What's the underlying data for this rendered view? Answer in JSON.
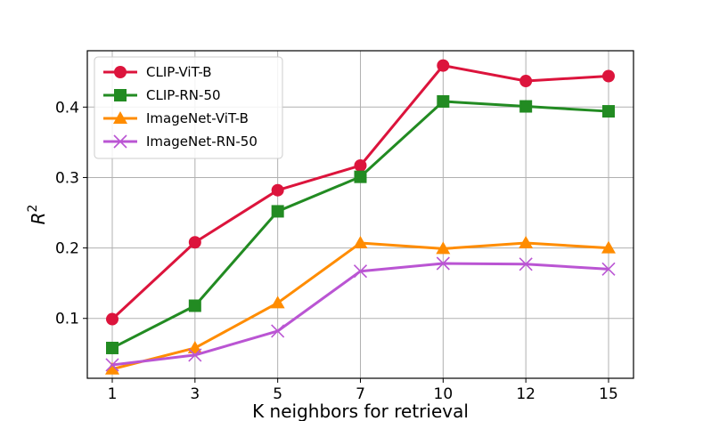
{
  "chart_data": {
    "type": "line",
    "xlabel": "K neighbors for retrieval",
    "ylabel_base": "R",
    "ylabel_sup": "2",
    "categories": [
      "1",
      "3",
      "5",
      "7",
      "10",
      "12",
      "15"
    ],
    "y_ticks": [
      0.1,
      0.2,
      0.3,
      0.4
    ],
    "ylim": [
      0.015,
      0.48
    ],
    "grid": true,
    "legend_position": "top-left",
    "series": [
      {
        "name": "CLIP-ViT-B",
        "color": "#dc143c",
        "marker": "circle",
        "values": [
          0.099,
          0.208,
          0.282,
          0.317,
          0.459,
          0.437,
          0.444
        ]
      },
      {
        "name": "CLIP-RN-50",
        "color": "#228b22",
        "marker": "square",
        "values": [
          0.058,
          0.118,
          0.252,
          0.301,
          0.408,
          0.401,
          0.394
        ]
      },
      {
        "name": "ImageNet-ViT-B",
        "color": "#ff8c00",
        "marker": "triangle",
        "values": [
          0.028,
          0.058,
          0.122,
          0.207,
          0.199,
          0.207,
          0.2
        ]
      },
      {
        "name": "ImageNet-RN-50",
        "color": "#ba55d3",
        "marker": "x",
        "values": [
          0.034,
          0.048,
          0.082,
          0.167,
          0.178,
          0.177,
          0.17
        ]
      }
    ]
  }
}
